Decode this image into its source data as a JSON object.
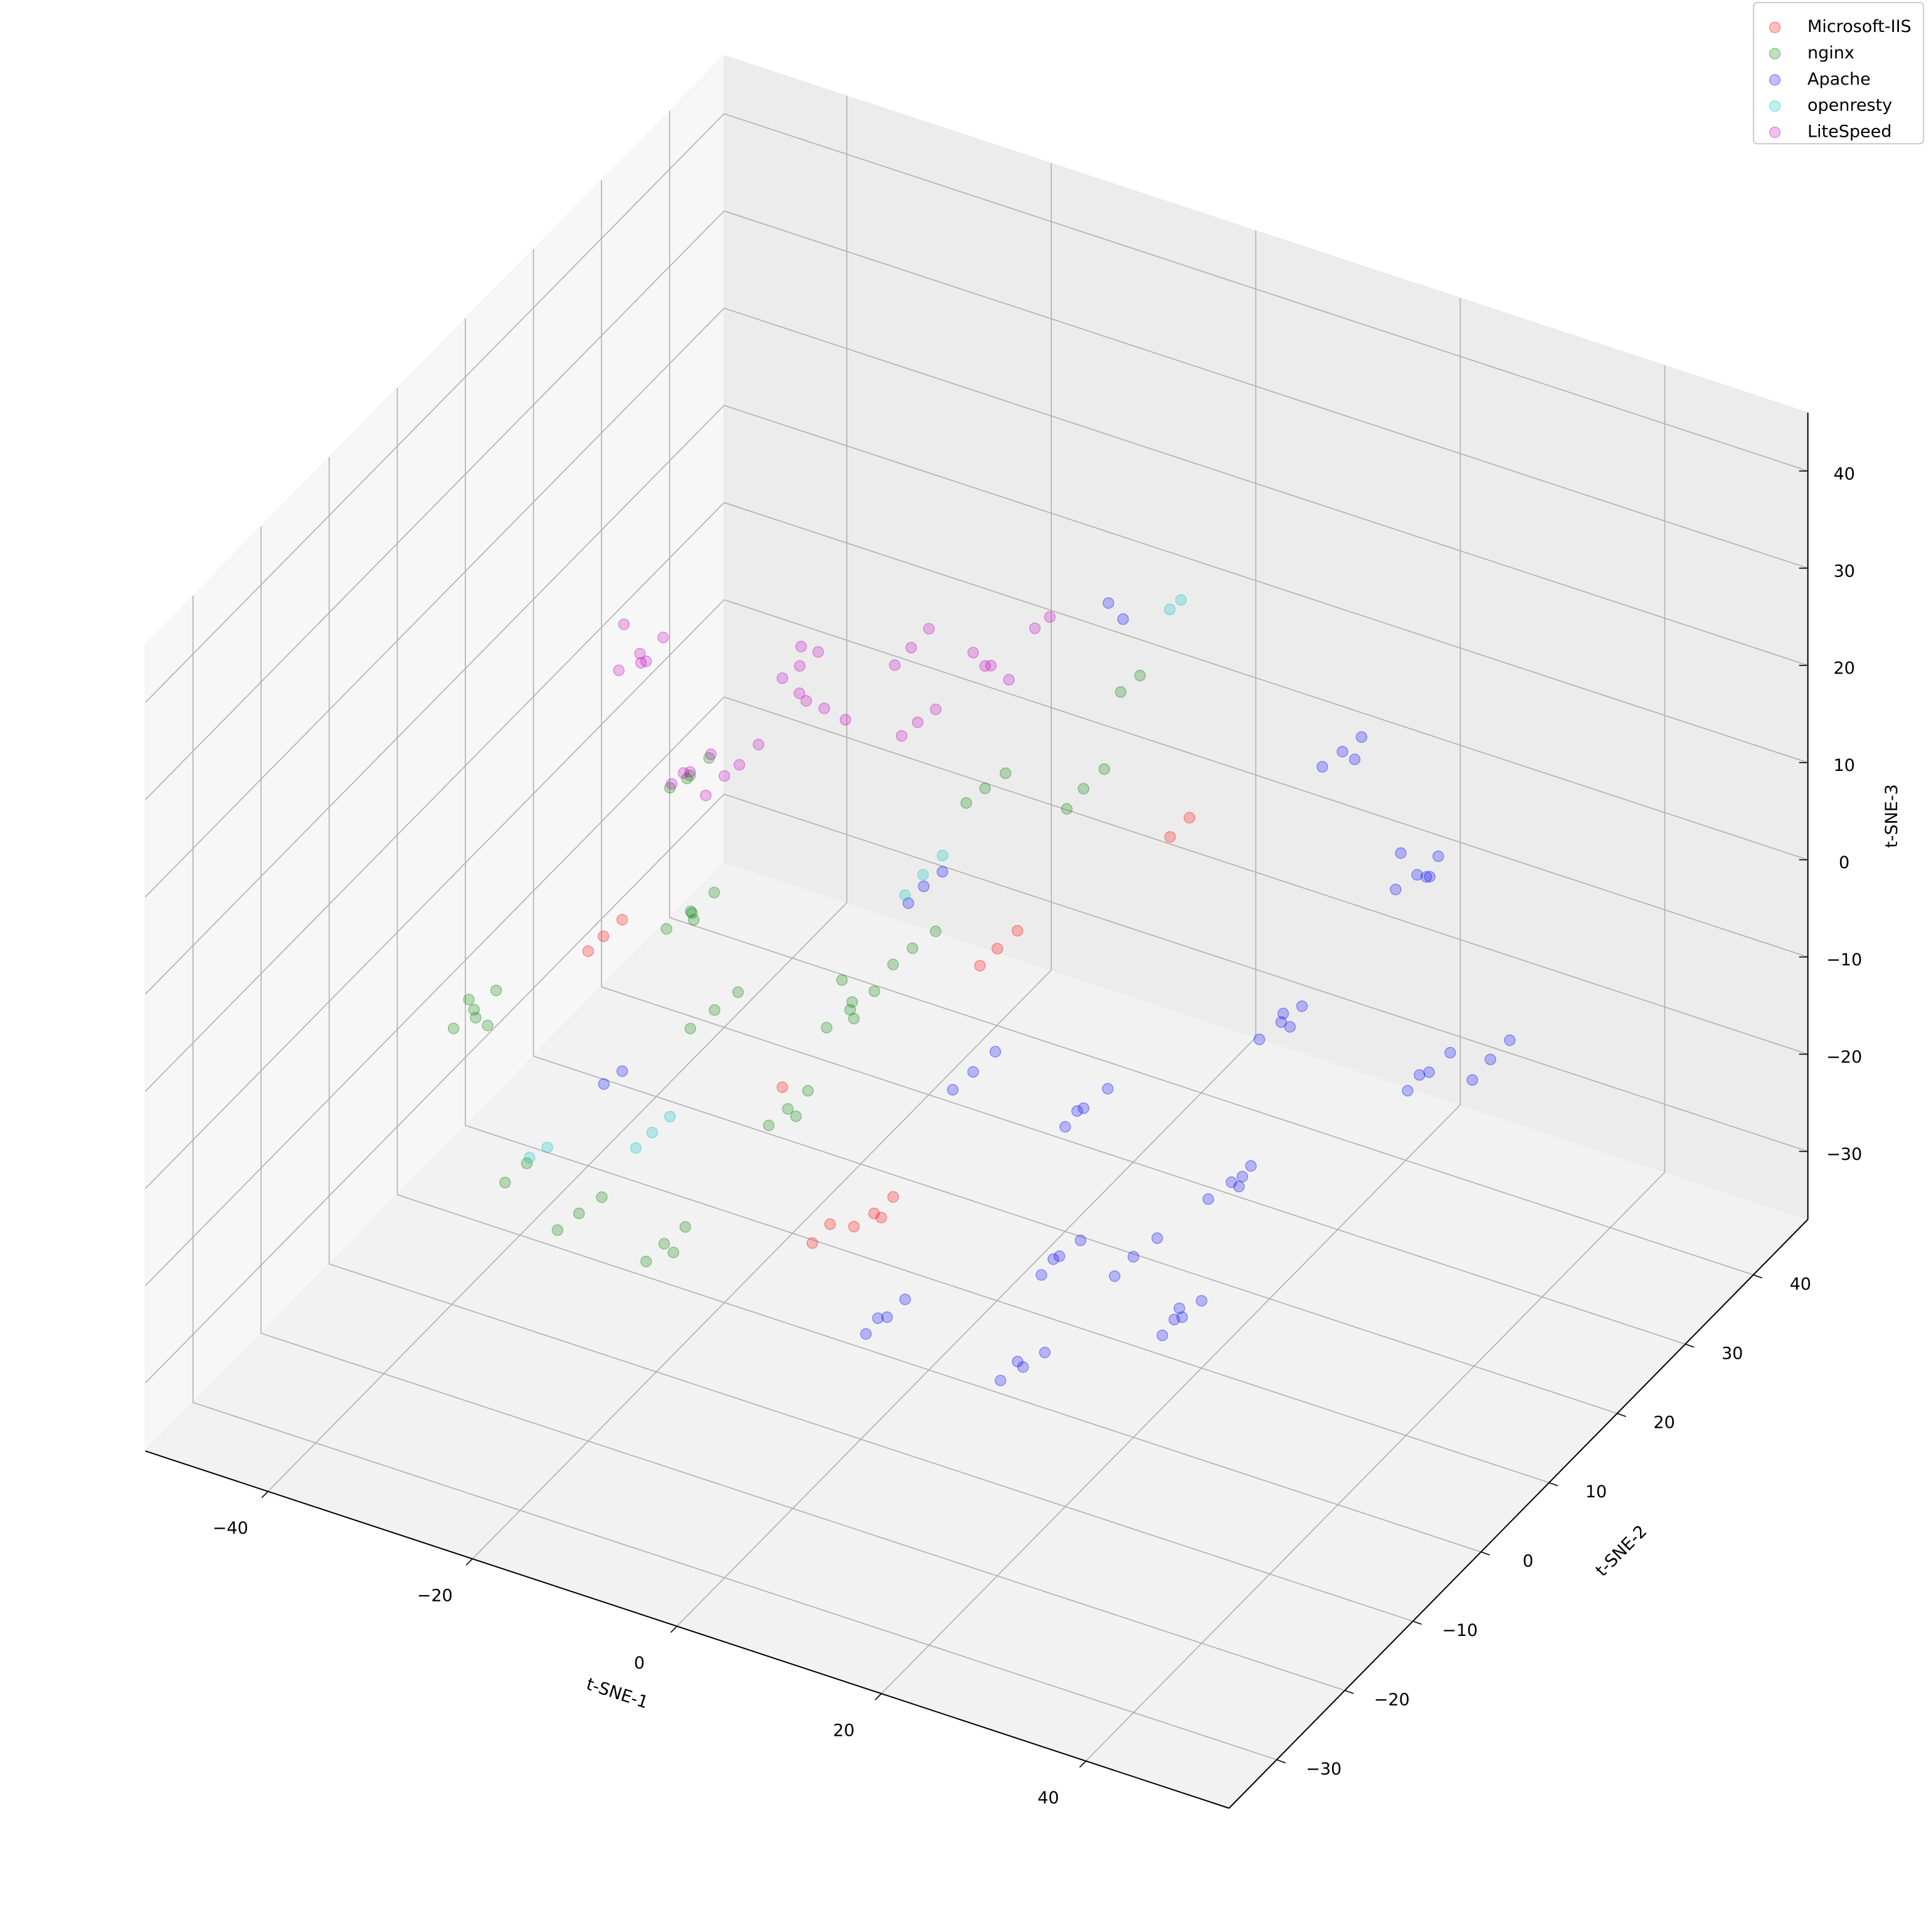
{
  "chart_data": {
    "type": "scatter3d",
    "xlabel": "t-SNE-1",
    "ylabel": "t-SNE-2",
    "zlabel": "t-SNE-3",
    "xlim": [
      -52,
      54
    ],
    "ylim": [
      -37,
      48
    ],
    "zlim": [
      -37,
      46
    ],
    "xticks": [
      {
        "value": -40,
        "label": "−40"
      },
      {
        "value": -20,
        "label": "−20"
      },
      0,
      20,
      40
    ],
    "yticks": [
      {
        "value": -30,
        "label": "−30"
      },
      {
        "value": -20,
        "label": "−20"
      },
      {
        "value": -10,
        "label": "−10"
      },
      0,
      10,
      20,
      30,
      40
    ],
    "zticks": [
      {
        "value": -30,
        "label": "−30"
      },
      {
        "value": -20,
        "label": "−20"
      },
      {
        "value": -10,
        "label": "−10"
      },
      0,
      10,
      20,
      30,
      40
    ],
    "grid": true,
    "alpha": 0.25,
    "legend": "upper right",
    "series": [
      {
        "name": "Microsoft-IIS",
        "color": "#ff0000",
        "x": [
          -3.7,
          -2.5,
          -5,
          -4,
          -32.1,
          -31,
          -33,
          -2.1,
          -1,
          -3,
          -9,
          -8,
          8.4,
          9.5,
          -13
        ],
        "y": [
          -2.5,
          -1.5,
          -3.5,
          -1,
          0.4,
          1.5,
          -0.5,
          13.2,
          14.5,
          12,
          -3.6,
          -2.5,
          22.8,
          24,
          -2
        ],
        "z": [
          -20.4,
          -19,
          -21.5,
          -22,
          -3.8,
          -2.5,
          -5,
          -3.8,
          -2.5,
          -5,
          -24.5,
          -23,
          4.5,
          6,
          -11
        ]
      },
      {
        "name": "nginx",
        "color": "#008000",
        "x": [
          -39.3,
          -38,
          -40.5,
          -39,
          -40,
          -37.5,
          -24.5,
          -23,
          -26,
          -25,
          -23.5,
          -11.5,
          -10,
          -13,
          -12,
          -10.5,
          -12.5,
          -25.5,
          -24,
          -27,
          -19.9,
          -18.5,
          -21,
          -20,
          -22.7,
          -21.5,
          -24,
          -22,
          -11.8,
          -10.5,
          -13,
          -12,
          -8.4,
          -7,
          -9.5,
          1.4,
          2.5,
          0.5,
          -21.5,
          -20,
          -23,
          8.7,
          10,
          -33.2,
          -32,
          -5.9,
          -4.5,
          -7
        ],
        "y": [
          -7.8,
          -6.5,
          -9,
          -9,
          -6.5,
          -8.5,
          1.8,
          3,
          0.5,
          3,
          0.5,
          5.7,
          7,
          4.5,
          7,
          4.5,
          6,
          -13.1,
          -12,
          -14,
          -9,
          -8,
          -10,
          -7.5,
          -1,
          0,
          -2,
          -2.5,
          -3,
          -2,
          -4,
          -1.5,
          10.2,
          11.5,
          9,
          20.6,
          22,
          19.5,
          0.8,
          2,
          -0.5,
          15.1,
          16,
          -12.4,
          -11,
          17.1,
          18,
          16
        ],
        "z": [
          -8,
          -6.5,
          -9.5,
          -6,
          -10,
          -8.5,
          0.4,
          2,
          -1,
          -1.5,
          1.5,
          -8,
          -6.5,
          -9.5,
          -10,
          -6,
          -5.5,
          -20.4,
          -19,
          -22,
          -24.5,
          -23,
          -26,
          -26.5,
          17,
          18.5,
          16,
          18,
          -12.1,
          -10.5,
          -13.5,
          -14,
          -3.8,
          -2.5,
          -5,
          8.6,
          10,
          7,
          -8,
          -6.5,
          -9.5,
          25,
          26.5,
          -20.4,
          -19,
          8.6,
          10,
          7.5
        ]
      },
      {
        "name": "Apache",
        "color": "#0000ff",
        "x": [
          32.3,
          33.5,
          31,
          32,
          34,
          30.5,
          20.8,
          22,
          19.5,
          21,
          24.2,
          25.5,
          23,
          24,
          25,
          35.8,
          37,
          34.5,
          36,
          23.4,
          24.5,
          22,
          23,
          25,
          23.7,
          25,
          22.5,
          24,
          22.5,
          13.1,
          14.5,
          12,
          13.5,
          1.9,
          3,
          0.5,
          2,
          12.6,
          14,
          11,
          13,
          10,
          11.5,
          9,
          10.5,
          18.6,
          20,
          17.5,
          -0.8,
          0.5,
          -2,
          -27.2,
          -26,
          -9.1,
          -8,
          -10,
          10.3,
          11,
          39.4,
          40.5,
          38.5
        ],
        "y": [
          23.2,
          24.5,
          22,
          25,
          22.5,
          23.5,
          29.5,
          30.5,
          28.5,
          31,
          15.4,
          16.5,
          14,
          17,
          14.5,
          19.7,
          21,
          18.5,
          18,
          9.3,
          10.5,
          8,
          11,
          8.5,
          1.6,
          2.5,
          0.5,
          0,
          3,
          -0.5,
          0.5,
          -1.5,
          -2,
          -9,
          -8,
          -10,
          -10.5,
          -5.1,
          -4,
          -6,
          -6.5,
          7.7,
          9,
          6.5,
          6,
          2.1,
          3.5,
          1,
          7.7,
          9,
          6.5,
          -6.9,
          -6,
          12.9,
          14,
          12,
          10.9,
          12,
          23.3,
          24.5,
          22
        ],
        "z": [
          8.6,
          10,
          7.5,
          7,
          9.5,
          10,
          12.8,
          14,
          11.5,
          11,
          -3.8,
          -2.5,
          -5,
          -5.5,
          -2,
          -8,
          -6.5,
          -9.5,
          -7,
          -16.2,
          -15,
          -17.5,
          -18,
          -14.5,
          -24.5,
          -23,
          -26,
          -23.5,
          -25,
          -20.4,
          -19,
          -22,
          -19.5,
          -24.5,
          -23,
          -26,
          -23.5,
          -28.7,
          -27.5,
          -30,
          -27,
          -12.1,
          -10.5,
          -13.5,
          -11,
          -20.4,
          -19,
          -22,
          -12.1,
          -10.5,
          -13.5,
          -12.1,
          -11,
          0.4,
          1.5,
          -1,
          37.7,
          35.5,
          -8,
          -6.5,
          -9.5
        ]
      },
      {
        "name": "openresty",
        "color": "#00bfbf",
        "x": [
          -23,
          -22,
          -24,
          -7.1,
          -6,
          -8,
          15.3,
          16,
          -33.2,
          -32
        ],
        "y": [
          -6.1,
          -5,
          -7,
          9.8,
          11,
          8.5,
          12.4,
          13,
          -8.8,
          -8
        ],
        "z": [
          -16.2,
          -15,
          -17.5,
          4.5,
          6,
          3,
          37.7,
          38.5,
          -20.4,
          -19.5
        ]
      },
      {
        "name": "LiteSpeed",
        "color": "#bf00bf",
        "x": [
          -23.6,
          -22,
          -25,
          -24,
          -22.5,
          -25.5,
          -17.3,
          -16,
          -18.5,
          -17,
          -15.5,
          -10.9,
          -9.5,
          -12,
          -11.5,
          -10,
          -8.9,
          -7.5,
          -10,
          -4,
          -3,
          -5,
          3.2,
          4.5,
          2,
          3.5,
          -4.1,
          -3,
          -5,
          5.5,
          6.5,
          -17,
          -16,
          -18
        ],
        "y": [
          -7,
          -6,
          -8,
          -5.5,
          -8.5,
          -6.5,
          -9.1,
          -8,
          -10,
          -10.5,
          -9.5,
          -2.6,
          -2,
          -3.5,
          -1.5,
          -4,
          -2,
          -1,
          -3,
          3.4,
          4.5,
          2.5,
          4.3,
          5,
          3.5,
          3,
          4.5,
          5.5,
          3.5,
          7.3,
          8,
          -2.3,
          -1,
          -3
        ],
        "z": [
          33.5,
          35,
          32,
          31.5,
          34,
          35.5,
          25,
          26.5,
          24,
          26,
          23.5,
          33.5,
          35,
          32.5,
          34.5,
          32,
          29.4,
          28,
          30.5,
          33.5,
          35,
          32,
          33.5,
          32,
          35,
          34.5,
          25,
          26,
          24,
          36,
          37,
          21,
          22.5,
          20
        ]
      }
    ]
  }
}
